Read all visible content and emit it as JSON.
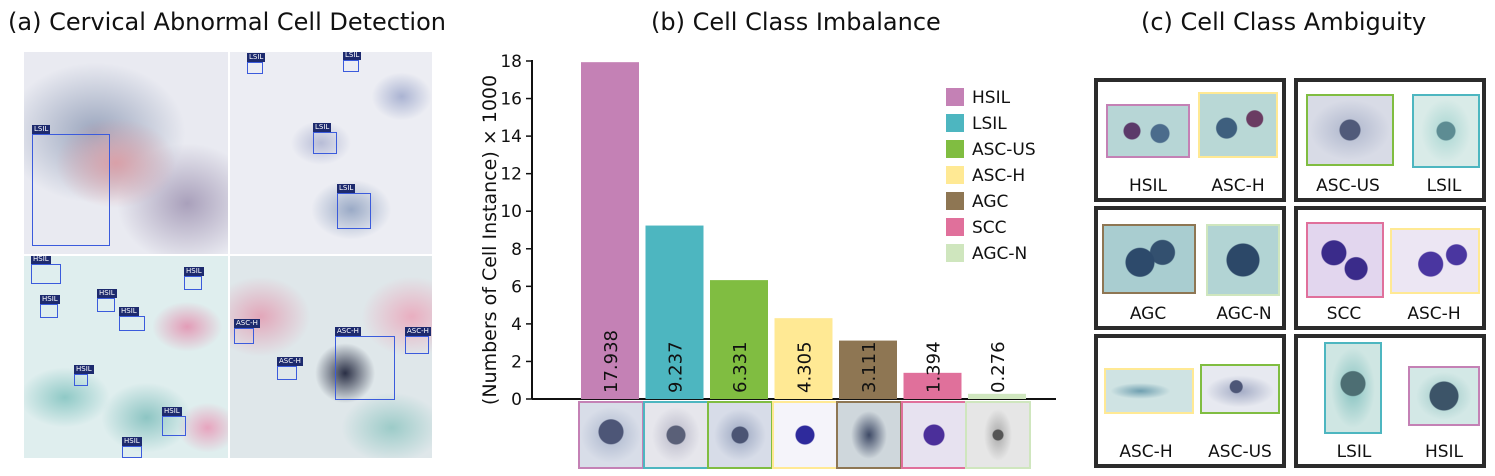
{
  "panel_a": {
    "title": "(a) Cervical Abnormal Cell Detection",
    "tiles": [
      {
        "boxes": [
          {
            "label": "LSIL"
          }
        ]
      },
      {
        "boxes": [
          {
            "label": "LSIL"
          },
          {
            "label": "LSIL"
          },
          {
            "label": "LSIL"
          },
          {
            "label": "LSIL"
          }
        ]
      },
      {
        "boxes": [
          {
            "label": "HSIL"
          },
          {
            "label": "HSIL"
          },
          {
            "label": "HSIL"
          },
          {
            "label": "HSIL"
          },
          {
            "label": "HSIL"
          },
          {
            "label": "HSIL"
          },
          {
            "label": "HSIL"
          },
          {
            "label": "HSIL"
          }
        ]
      },
      {
        "boxes": [
          {
            "label": "ASC-H"
          },
          {
            "label": "ASC-H"
          },
          {
            "label": "ASC-H"
          },
          {
            "label": "ASC-H"
          }
        ]
      }
    ]
  },
  "panel_c": {
    "title": "(c) Cell Class Ambiguity",
    "pairs": [
      {
        "left": "HSIL",
        "right": "ASC-H"
      },
      {
        "left": "ASC-US",
        "right": "LSIL"
      },
      {
        "left": "AGC",
        "right": "AGC-N"
      },
      {
        "left": "SCC",
        "right": "ASC-H"
      },
      {
        "left": "ASC-H",
        "right": "ASC-US"
      },
      {
        "left": "LSIL",
        "right": "HSIL"
      }
    ]
  },
  "colors": {
    "HSIL": "#c481b5",
    "LSIL": "#4db6c0",
    "ASC-US": "#80bd41",
    "ASC-H": "#ffe994",
    "AGC": "#8e7653",
    "SCC": "#e0709b",
    "AGC-N": "#cfe6be"
  },
  "chart_data": {
    "type": "bar",
    "title": "(b) Cell Class Imbalance",
    "xlabel": "",
    "ylabel": "(Numbers of Cell Instance) × 1000",
    "categories": [
      "HSIL",
      "LSIL",
      "ASC-US",
      "ASC-H",
      "AGC",
      "SCC",
      "AGC-N"
    ],
    "values": [
      17.938,
      9.237,
      6.331,
      4.305,
      3.111,
      1.394,
      0.276
    ],
    "value_labels": [
      "17.938",
      "9.237",
      "6.331",
      "4.305",
      "3.111",
      "1.394",
      "0.276"
    ],
    "ylim": [
      0,
      18
    ],
    "yticks": [
      "0",
      "2",
      "4",
      "6",
      "8",
      "10",
      "12",
      "14",
      "16",
      "18"
    ],
    "legend": [
      "HSIL",
      "LSIL",
      "ASC-US",
      "ASC-H",
      "AGC",
      "SCC",
      "AGC-N"
    ],
    "legend_position": "top-right",
    "grid": false
  }
}
